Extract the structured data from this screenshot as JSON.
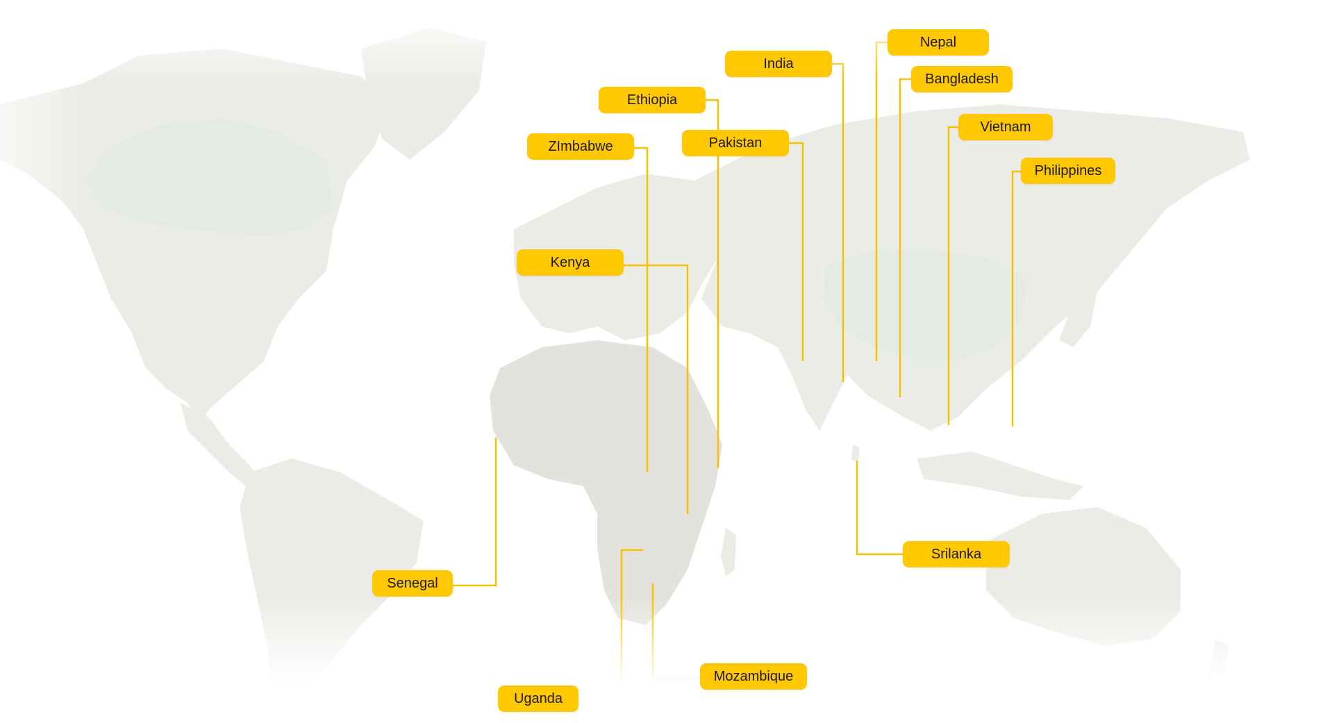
{
  "map": {
    "style": "world map with country labels and leader lines",
    "land_color": "#ecece7",
    "accent_color": "#ffc800",
    "line_color": "#f5c100",
    "labels": [
      {
        "id": "india",
        "name": "India"
      },
      {
        "id": "nepal",
        "name": "Nepal"
      },
      {
        "id": "bangladesh",
        "name": "Bangladesh"
      },
      {
        "id": "ethiopia",
        "name": "Ethiopia"
      },
      {
        "id": "pakistan",
        "name": "Pakistan"
      },
      {
        "id": "zimbabwe",
        "name": "ZImbabwe"
      },
      {
        "id": "vietnam",
        "name": "Vietnam"
      },
      {
        "id": "philippines",
        "name": "Philippines"
      },
      {
        "id": "kenya",
        "name": "Kenya"
      },
      {
        "id": "senegal",
        "name": "Senegal"
      },
      {
        "id": "srilanka",
        "name": "Srilanka"
      },
      {
        "id": "mozambique",
        "name": "Mozambique"
      },
      {
        "id": "uganda",
        "name": "Uganda"
      }
    ]
  }
}
